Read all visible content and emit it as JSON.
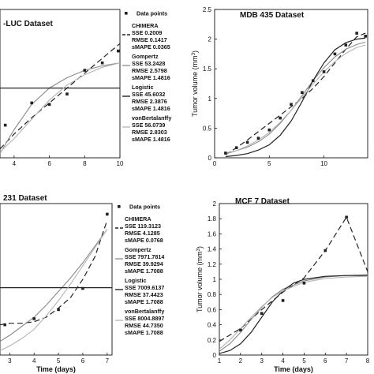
{
  "chart_data": [
    {
      "id": "tl",
      "type": "line",
      "title": "-LUC Dataset",
      "xlabel": "",
      "ylabel": "",
      "xlim": [
        3.2,
        10
      ],
      "ylim": [
        0,
        10
      ],
      "xticks": [
        4,
        6,
        8,
        10
      ],
      "yticks": [],
      "points": [
        [
          3.5,
          2.2
        ],
        [
          5,
          3.7
        ],
        [
          6,
          3.6
        ],
        [
          7,
          4.3
        ],
        [
          8,
          5.9
        ],
        [
          9,
          6.4
        ],
        [
          9.9,
          7.2
        ]
      ],
      "series": [
        {
          "name": "CHIMERA",
          "style": "dashed",
          "x": [
            3.2,
            4,
            5,
            6,
            7,
            8,
            9,
            10
          ],
          "y": [
            0.6,
            1.6,
            2.7,
            3.7,
            4.7,
            5.7,
            6.7,
            7.7
          ]
        },
        {
          "name": "Gompertz",
          "style": "solid-gray",
          "x": [
            3.2,
            4,
            5,
            6,
            7,
            8,
            9,
            10
          ],
          "y": [
            0.3,
            1.9,
            3.6,
            4.7,
            5.4,
            5.9,
            6.2,
            6.4
          ]
        },
        {
          "name": "Logistic",
          "style": "solid-black",
          "x": [
            3.2,
            10
          ],
          "y": [
            4.7,
            4.7
          ]
        },
        {
          "name": "vonBertalanffy",
          "style": "solid-lightgray",
          "x": [
            3.2,
            4,
            5,
            6,
            7,
            8,
            9,
            10
          ],
          "y": [
            0.4,
            1.3,
            2.6,
            3.9,
            4.9,
            5.6,
            6.1,
            6.4
          ]
        }
      ],
      "legend": {
        "points_label": "Data points",
        "entries": [
          {
            "name": "CHIMERA",
            "sse": "SSE 0.2009",
            "rmse": "RMSE 0.1417",
            "smape": "sMAPE 0.0365"
          },
          {
            "name": "Gompertz",
            "sse": "SSE 53.2428",
            "rmse": "RMSE 2.5798",
            "smape": "sMAPE 1.4816"
          },
          {
            "name": "Logistic",
            "sse": "SSE 45.6032",
            "rmse": "RMSE 2.3876",
            "smape": "sMAPE 1.4816"
          },
          {
            "name": "vonBertalanffy",
            "sse": "SSE 56.0739",
            "rmse": "RMSE 2.8303",
            "smape": "sMAPE 1.4816"
          }
        ]
      }
    },
    {
      "id": "tr",
      "type": "line",
      "title": "MDB 435 Dataset",
      "xlabel": "",
      "ylabel": "Tumor volume (mm3)",
      "xlim": [
        0,
        14
      ],
      "ylim": [
        0,
        2.5
      ],
      "xticks": [
        0,
        5,
        10
      ],
      "yticks": [
        0,
        0.5,
        1,
        1.5,
        2,
        2.5
      ],
      "points": [
        [
          1,
          0.08
        ],
        [
          2,
          0.17
        ],
        [
          3,
          0.26
        ],
        [
          4,
          0.33
        ],
        [
          5,
          0.47
        ],
        [
          6,
          0.67
        ],
        [
          7,
          0.9
        ],
        [
          8,
          1.1
        ],
        [
          9,
          1.3
        ],
        [
          10,
          1.45
        ],
        [
          11,
          1.75
        ],
        [
          12,
          1.9
        ],
        [
          13,
          2.1
        ],
        [
          13.8,
          2.05
        ]
      ],
      "series": [
        {
          "name": "CHIMERA",
          "style": "dashed",
          "x": [
            1,
            2,
            3,
            4,
            5,
            6,
            7,
            8,
            9,
            10,
            11,
            12,
            13,
            13.8
          ],
          "y": [
            0.05,
            0.17,
            0.3,
            0.44,
            0.58,
            0.72,
            0.86,
            1.0,
            1.17,
            1.37,
            1.6,
            1.83,
            2.04,
            2.1
          ]
        },
        {
          "name": "Gompertz",
          "style": "solid-gray",
          "x": [
            1,
            2,
            3,
            4,
            5,
            6,
            7,
            8,
            9,
            10,
            11,
            12,
            13,
            13.8
          ],
          "y": [
            0.08,
            0.12,
            0.18,
            0.27,
            0.4,
            0.58,
            0.8,
            1.05,
            1.3,
            1.52,
            1.7,
            1.83,
            1.91,
            1.95
          ]
        },
        {
          "name": "Logistic",
          "style": "solid-black",
          "x": [
            1,
            2,
            3,
            4,
            5,
            6,
            7,
            8,
            9,
            10,
            11,
            12,
            13,
            13.8
          ],
          "y": [
            0.02,
            0.04,
            0.07,
            0.13,
            0.22,
            0.38,
            0.62,
            0.95,
            1.3,
            1.6,
            1.82,
            1.94,
            2.0,
            2.02
          ]
        },
        {
          "name": "vonBertalanffy",
          "style": "solid-lightgray",
          "x": [
            1,
            2,
            3,
            4,
            5,
            6,
            7,
            8,
            9,
            10,
            11,
            12,
            13,
            13.8
          ],
          "y": [
            0.06,
            0.12,
            0.2,
            0.3,
            0.43,
            0.6,
            0.8,
            1.02,
            1.24,
            1.45,
            1.62,
            1.76,
            1.86,
            1.9
          ]
        }
      ]
    },
    {
      "id": "bl",
      "type": "line",
      "title": "231 Dataset",
      "xlabel": "Time (days)",
      "ylabel": "",
      "xlim": [
        2.6,
        7.2
      ],
      "ylim": [
        0,
        10
      ],
      "xticks": [
        3,
        4,
        5,
        6,
        7
      ],
      "yticks": [],
      "points": [
        [
          2.8,
          2.0
        ],
        [
          4,
          2.4
        ],
        [
          5,
          3.0
        ],
        [
          6,
          4.4
        ],
        [
          7,
          9.3
        ]
      ],
      "series": [
        {
          "name": "CHIMERA",
          "style": "dashed",
          "x": [
            2.6,
            3.0,
            3.5,
            4.0,
            4.5,
            5.0,
            5.5,
            6.0,
            6.5,
            7.0
          ],
          "y": [
            2.0,
            2.1,
            2.1,
            2.2,
            2.5,
            3.1,
            3.8,
            5.0,
            6.5,
            8.9
          ]
        },
        {
          "name": "Gompertz",
          "style": "solid-gray",
          "x": [
            2.6,
            3.0,
            3.5,
            4.0,
            4.5,
            5.0,
            5.5,
            6.0,
            6.5,
            7.0
          ],
          "y": [
            0.9,
            1.3,
            1.9,
            2.5,
            3.3,
            4.2,
            5.1,
            6.1,
            7.2,
            8.3
          ]
        },
        {
          "name": "Logistic",
          "style": "solid-black",
          "x": [
            2.6,
            7.2
          ],
          "y": [
            4.45,
            4.45
          ]
        },
        {
          "name": "vonBertalanffy",
          "style": "solid-lightgray",
          "x": [
            2.6,
            3.0,
            3.5,
            4.0,
            4.5,
            5.0,
            5.5,
            6.0,
            6.5,
            7.0
          ],
          "y": [
            0.3,
            0.6,
            1.1,
            1.7,
            2.6,
            3.6,
            4.7,
            5.9,
            7.1,
            8.3
          ]
        }
      ],
      "legend": {
        "points_label": "Data points",
        "entries": [
          {
            "name": "CHIMERA",
            "sse": "SSE 119.3123",
            "rmse": "RMSE 4.1285",
            "smape": "sMAPE 0.0768"
          },
          {
            "name": "Gompertz",
            "sse": "SSE 7971.7814",
            "rmse": "RMSE 39.9294",
            "smape": "sMAPE 1.7088"
          },
          {
            "name": "Logistic",
            "sse": "SSE 7009.6137",
            "rmse": "RMSE 37.4423",
            "smape": "sMAPE 1.7088"
          },
          {
            "name": "vonBertalanffy",
            "sse": "SSE 8004.8897",
            "rmse": "RMSE 44.7350",
            "smape": "sMAPE 1.7088"
          }
        ]
      }
    },
    {
      "id": "br",
      "type": "line",
      "title": "MCF 7 Dataset",
      "xlabel": "Time (days)",
      "ylabel": "Tumor volume (mm3)",
      "xlim": [
        1,
        8
      ],
      "ylim": [
        0,
        2
      ],
      "xticks": [
        1,
        2,
        3,
        4,
        5,
        6,
        7,
        8
      ],
      "yticks": [
        0,
        0.2,
        0.4,
        0.6,
        0.8,
        1,
        1.2,
        1.4,
        1.6,
        1.8,
        2
      ],
      "points": [
        [
          2,
          0.33
        ],
        [
          3,
          0.55
        ],
        [
          4,
          0.72
        ],
        [
          5,
          0.95
        ],
        [
          6,
          1.38
        ],
        [
          7,
          1.82
        ]
      ],
      "series": [
        {
          "name": "CHIMERA",
          "style": "dashed",
          "x": [
            1,
            2,
            3,
            4,
            5,
            6,
            7,
            8
          ],
          "y": [
            0.18,
            0.35,
            0.6,
            0.83,
            1.02,
            1.38,
            1.82,
            1.1
          ]
        },
        {
          "name": "Gompertz",
          "style": "solid-gray",
          "x": [
            1,
            1.5,
            2,
            2.5,
            3,
            3.5,
            4,
            5,
            6,
            7,
            8
          ],
          "y": [
            0.05,
            0.15,
            0.3,
            0.47,
            0.63,
            0.77,
            0.87,
            0.98,
            1.03,
            1.05,
            1.06
          ]
        },
        {
          "name": "Logistic",
          "style": "solid-black",
          "x": [
            1,
            1.5,
            2,
            2.5,
            3,
            3.5,
            4,
            4.5,
            5,
            6,
            7,
            8
          ],
          "y": [
            0.02,
            0.06,
            0.15,
            0.3,
            0.5,
            0.7,
            0.85,
            0.95,
            1.0,
            1.04,
            1.05,
            1.05
          ]
        },
        {
          "name": "vonBertalanffy",
          "style": "solid-lightgray",
          "x": [
            1,
            1.5,
            2,
            2.5,
            3,
            3.5,
            4,
            5,
            6,
            7,
            8
          ],
          "y": [
            0.08,
            0.2,
            0.35,
            0.5,
            0.64,
            0.76,
            0.85,
            0.96,
            1.01,
            1.03,
            1.04
          ]
        }
      ]
    }
  ]
}
